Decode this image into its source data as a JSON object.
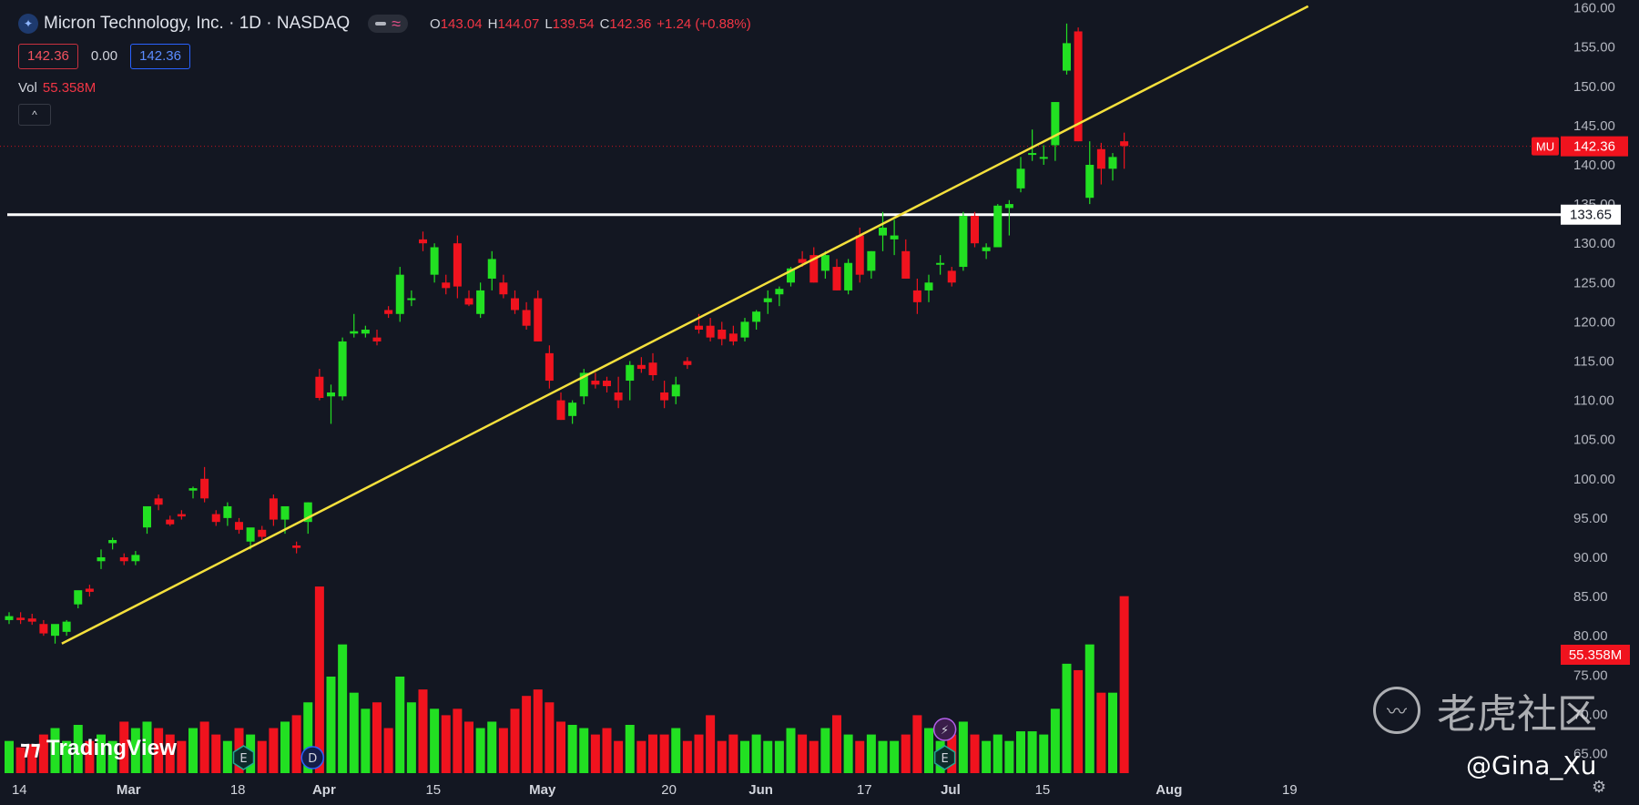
{
  "header": {
    "logo_icon": "micron-logo-icon",
    "symbol_title": "Micron Technology, Inc. · 1D · NASDAQ",
    "ohlc": [
      {
        "key": "O",
        "value": "143.04"
      },
      {
        "key": "H",
        "value": "144.07"
      },
      {
        "key": "L",
        "value": "139.54"
      },
      {
        "key": "C",
        "value": "142.36"
      },
      {
        "key": "",
        "value": "+1.24 (+0.88%)"
      }
    ],
    "bid": "142.36",
    "spread": "0.00",
    "ask": "142.36",
    "volume_label": "Vol",
    "volume_value": "55.358M",
    "collapse_icon": "^"
  },
  "branding": {
    "tradingview": "TradingView",
    "watermark_text": "老虎社区",
    "handle": "@Gina_Xu"
  },
  "colors": {
    "background": "#131722",
    "up": "#22e022",
    "down": "#f0131e",
    "trendline": "#f5e03c",
    "hline": "#ffffff"
  },
  "chart_data": {
    "type": "candlestick",
    "ticker_label": "MU",
    "last_price": 142.36,
    "last_price_label": "142.36",
    "last_volume_label": "55.358M",
    "horizontal_line": 133.65,
    "horizontal_line_label": "133.65",
    "ylim": [
      62.5,
      161
    ],
    "y_ticks": [
      65,
      70,
      75,
      80,
      85,
      90,
      95,
      100,
      105,
      110,
      115,
      120,
      125,
      130,
      135,
      140,
      145,
      150,
      155,
      160
    ],
    "x_ticks": [
      "14",
      "Mar",
      "18",
      "Apr",
      "15",
      "May",
      "20",
      "Jun",
      "17",
      "Jul",
      "15",
      "Aug",
      "19"
    ],
    "trendline": {
      "start": {
        "bar": 3,
        "price": 79.0
      },
      "end": {
        "bar": 113,
        "price": 160.2
      }
    },
    "events": [
      {
        "bar": 20,
        "label": "E",
        "kind": "earnings"
      },
      {
        "bar": 26,
        "label": "D",
        "kind": "dividend"
      },
      {
        "bar": 81,
        "label": "⚡",
        "kind": "flash"
      },
      {
        "bar": 81,
        "label": "E",
        "kind": "earnings"
      }
    ],
    "volume_max": 60,
    "candles": [
      [
        82.0,
        83.0,
        81.5,
        82.5,
        10
      ],
      [
        82.3,
        83.0,
        81.5,
        82.0,
        8
      ],
      [
        82.2,
        82.8,
        81.4,
        81.8,
        9
      ],
      [
        81.5,
        82.0,
        80.0,
        80.3,
        12
      ],
      [
        80.0,
        81.0,
        79.0,
        81.5,
        14
      ],
      [
        80.5,
        82.0,
        80.0,
        81.8,
        10
      ],
      [
        84.0,
        85.5,
        83.5,
        85.8,
        15
      ],
      [
        86.0,
        86.5,
        85.0,
        85.6,
        10
      ],
      [
        89.5,
        91.0,
        88.5,
        90.0,
        12
      ],
      [
        91.8,
        92.5,
        91.0,
        92.2,
        10
      ],
      [
        90.0,
        90.5,
        89.0,
        89.5,
        16
      ],
      [
        89.5,
        90.8,
        89.0,
        90.3,
        14
      ],
      [
        93.8,
        96.0,
        93.0,
        96.5,
        16
      ],
      [
        97.5,
        98.0,
        96.0,
        96.7,
        14
      ],
      [
        94.8,
        95.3,
        94.0,
        94.2,
        12
      ],
      [
        95.5,
        96.0,
        94.8,
        95.2,
        10
      ],
      [
        98.5,
        99.0,
        97.5,
        98.8,
        14
      ],
      [
        100.0,
        101.5,
        97.0,
        97.5,
        16
      ],
      [
        95.5,
        96.0,
        94.0,
        94.5,
        12
      ],
      [
        95.0,
        97.0,
        94.0,
        96.5,
        10
      ],
      [
        94.5,
        95.0,
        93.0,
        93.5,
        14
      ],
      [
        92.0,
        93.5,
        91.0,
        93.8,
        12
      ],
      [
        93.5,
        94.0,
        92.0,
        92.6,
        10
      ],
      [
        97.5,
        98.0,
        94.0,
        94.8,
        14
      ],
      [
        94.8,
        96.0,
        93.0,
        96.5,
        16
      ],
      [
        91.5,
        92.0,
        90.5,
        91.2,
        18
      ],
      [
        94.5,
        97.0,
        93.0,
        97.0,
        22
      ],
      [
        113.0,
        114.0,
        110.0,
        110.3,
        58
      ],
      [
        110.5,
        112.0,
        107.0,
        111.0,
        30
      ],
      [
        110.5,
        118.0,
        110.0,
        117.5,
        40
      ],
      [
        118.5,
        121.0,
        118.0,
        118.8,
        25
      ],
      [
        118.5,
        119.5,
        118.0,
        119.0,
        20
      ],
      [
        118.0,
        119.0,
        117.0,
        117.5,
        22
      ],
      [
        121.5,
        122.0,
        120.5,
        121.0,
        14
      ],
      [
        121.0,
        127.0,
        120.0,
        126.0,
        30
      ],
      [
        123.0,
        124.0,
        122.0,
        123.0,
        22
      ],
      [
        130.5,
        131.5,
        129.0,
        130.0,
        26
      ],
      [
        126.0,
        130.0,
        125.0,
        129.5,
        20
      ],
      [
        125.0,
        126.0,
        123.5,
        124.3,
        18
      ],
      [
        130.0,
        131.0,
        123.0,
        124.5,
        20
      ],
      [
        123.0,
        124.0,
        122.0,
        122.2,
        16
      ],
      [
        121.0,
        125.0,
        120.5,
        124.0,
        14
      ],
      [
        125.5,
        129.0,
        124.0,
        128.0,
        16
      ],
      [
        125.0,
        126.0,
        123.0,
        123.5,
        14
      ],
      [
        123.0,
        124.0,
        121.0,
        121.5,
        20
      ],
      [
        121.5,
        122.5,
        119.0,
        119.5,
        24
      ],
      [
        123.0,
        124.0,
        117.5,
        117.5,
        26
      ],
      [
        116.0,
        117.0,
        111.5,
        112.5,
        22
      ],
      [
        110.0,
        111.0,
        107.5,
        107.5,
        16
      ],
      [
        108.0,
        110.0,
        107.0,
        109.7,
        15
      ],
      [
        110.5,
        114.0,
        109.5,
        113.5,
        14
      ],
      [
        112.5,
        113.5,
        111.5,
        112.0,
        12
      ],
      [
        112.5,
        113.0,
        111.0,
        111.8,
        14
      ],
      [
        111.0,
        113.0,
        109.0,
        110.0,
        10
      ],
      [
        112.5,
        115.0,
        110.0,
        114.5,
        15
      ],
      [
        114.5,
        115.5,
        113.5,
        114.0,
        10
      ],
      [
        114.8,
        116.0,
        112.5,
        113.2,
        12
      ],
      [
        111.0,
        112.5,
        109.0,
        110.0,
        12
      ],
      [
        110.5,
        113.0,
        109.5,
        112.0,
        14
      ],
      [
        115.0,
        115.5,
        114.0,
        114.5,
        10
      ],
      [
        119.5,
        121.0,
        118.5,
        119.0,
        12
      ],
      [
        119.5,
        120.5,
        117.5,
        118.0,
        18
      ],
      [
        119.0,
        120.0,
        117.0,
        117.8,
        10
      ],
      [
        118.5,
        119.5,
        117.0,
        117.5,
        12
      ],
      [
        118.0,
        120.5,
        117.5,
        120.0,
        10
      ],
      [
        120.0,
        121.5,
        119.0,
        121.3,
        12
      ],
      [
        122.5,
        124.0,
        121.0,
        123.0,
        10
      ],
      [
        123.5,
        124.5,
        122.0,
        124.2,
        10
      ],
      [
        125.0,
        127.0,
        124.5,
        126.8,
        14
      ],
      [
        128.0,
        129.0,
        127.0,
        127.5,
        12
      ],
      [
        128.5,
        129.5,
        125.0,
        125.0,
        10
      ],
      [
        126.5,
        129.0,
        125.5,
        128.5,
        14
      ],
      [
        127.0,
        128.0,
        124.0,
        124.0,
        18
      ],
      [
        124.0,
        128.0,
        123.5,
        127.5,
        12
      ],
      [
        131.0,
        132.0,
        125.0,
        126.0,
        10
      ],
      [
        126.5,
        129.0,
        125.5,
        129.0,
        12
      ],
      [
        131.0,
        134.0,
        129.0,
        132.0,
        10
      ],
      [
        130.5,
        133.0,
        128.5,
        131.0,
        10
      ],
      [
        129.0,
        130.5,
        125.5,
        125.5,
        12
      ],
      [
        124.0,
        125.5,
        121.0,
        122.5,
        18
      ],
      [
        124.0,
        126.0,
        122.5,
        125.0,
        14
      ],
      [
        127.5,
        128.5,
        126.0,
        127.5,
        10
      ],
      [
        126.5,
        127.0,
        124.5,
        125.0,
        12
      ],
      [
        127.0,
        134.0,
        126.5,
        133.5,
        16
      ],
      [
        133.5,
        134.0,
        129.5,
        130.0,
        12
      ],
      [
        129.0,
        130.0,
        128.0,
        129.5,
        10
      ],
      [
        129.5,
        135.0,
        129.5,
        134.8,
        12
      ],
      [
        134.5,
        135.5,
        131.0,
        135.0,
        10
      ],
      [
        137.0,
        141.0,
        136.5,
        139.5,
        13
      ],
      [
        141.5,
        144.5,
        140.5,
        141.5,
        13
      ],
      [
        141.0,
        142.5,
        140.0,
        141.0,
        12
      ],
      [
        142.5,
        148.0,
        140.5,
        148.0,
        20
      ],
      [
        152.0,
        158.0,
        151.5,
        155.5,
        34
      ],
      [
        157.0,
        157.5,
        143.0,
        143.0,
        32
      ],
      [
        135.8,
        143.0,
        135.0,
        140.0,
        40
      ],
      [
        142.0,
        142.8,
        137.5,
        139.5,
        25
      ],
      [
        139.5,
        141.5,
        138.0,
        141.0,
        25
      ],
      [
        143.0,
        144.1,
        139.5,
        142.4,
        55
      ]
    ]
  }
}
